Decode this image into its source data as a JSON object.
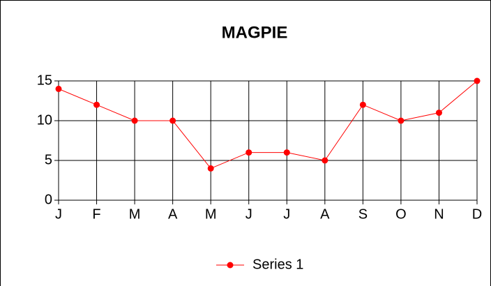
{
  "chart_data": {
    "type": "line",
    "title": "MAGPIE",
    "categories": [
      "J",
      "F",
      "M",
      "A",
      "M",
      "J",
      "J",
      "A",
      "S",
      "O",
      "N",
      "D"
    ],
    "series": [
      {
        "name": "Series 1",
        "color": "#ff0000",
        "values": [
          14,
          12,
          10,
          10,
          4,
          6,
          6,
          5,
          12,
          10,
          11,
          15
        ]
      }
    ],
    "ylim": [
      0,
      15
    ],
    "yticks": [
      0,
      5,
      10,
      15
    ],
    "grid": true,
    "legend": "bottom"
  }
}
